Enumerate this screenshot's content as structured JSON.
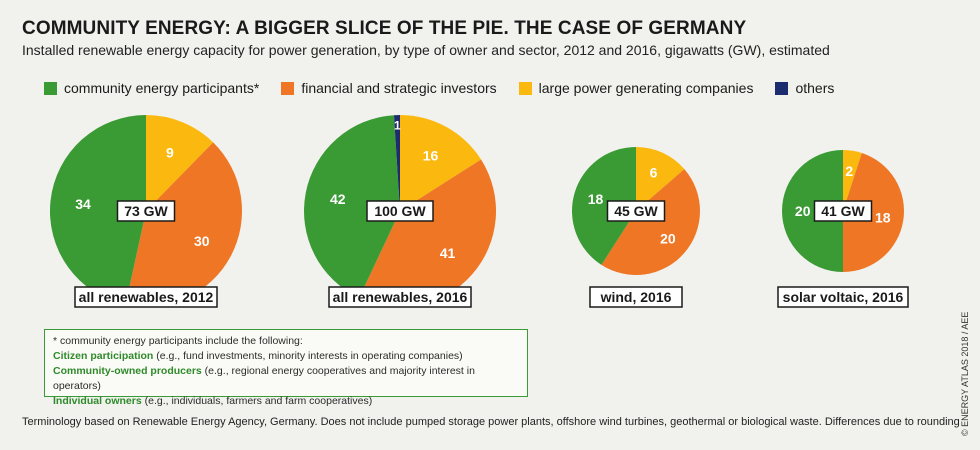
{
  "header": {
    "title": "COMMUNITY ENERGY: A BIGGER SLICE OF THE PIE. THE CASE OF GERMANY",
    "subtitle": "Installed renewable energy capacity for power generation, by type of owner and sector, 2012 and 2016, gigawatts (GW), estimated"
  },
  "legend": [
    {
      "label": "community energy participants*",
      "color": "#3a9a34"
    },
    {
      "label": "financial and strategic investors",
      "color": "#ee7624"
    },
    {
      "label": "large power generating companies",
      "color": "#fbb90f"
    },
    {
      "label": "others",
      "color": "#1d2c6e"
    }
  ],
  "chart_data": [
    {
      "type": "pie",
      "title": "all renewables, 2012",
      "total": "73 GW",
      "labels": [
        "community energy participants*",
        "financial and strategic investors",
        "large power generating companies"
      ],
      "values": [
        34,
        30,
        9
      ],
      "colors": [
        "#3a9a34",
        "#ee7624",
        "#fbb90f"
      ]
    },
    {
      "type": "pie",
      "title": "all renewables, 2016",
      "total": "100 GW",
      "labels": [
        "community energy participants*",
        "financial and strategic investors",
        "large power generating companies",
        "others"
      ],
      "values": [
        42,
        41,
        16,
        1
      ],
      "colors": [
        "#3a9a34",
        "#ee7624",
        "#fbb90f",
        "#1d2c6e"
      ]
    },
    {
      "type": "pie",
      "title": "wind, 2016",
      "total": "45 GW",
      "labels": [
        "community energy participants*",
        "financial and strategic investors",
        "large power generating companies"
      ],
      "values": [
        18,
        20,
        6
      ],
      "colors": [
        "#3a9a34",
        "#ee7624",
        "#fbb90f"
      ]
    },
    {
      "type": "pie",
      "title": "solar voltaic, 2016",
      "total": "41 GW",
      "labels": [
        "community energy participants*",
        "financial and strategic investors",
        "large power generating companies"
      ],
      "values": [
        20,
        18,
        2
      ],
      "colors": [
        "#3a9a34",
        "#ee7624",
        "#fbb90f"
      ]
    }
  ],
  "note": {
    "intro": "* community energy participants include the following:",
    "items": [
      {
        "term": "Citizen participation",
        "desc": " (e.g., fund investments, minority interests in operating companies)"
      },
      {
        "term": "Community-owned producers",
        "desc": " (e.g., regional energy cooperatives and majority interest in operators)"
      },
      {
        "term": "Individual owners",
        "desc": " (e.g., individuals, farmers and farm cooperatives)"
      }
    ]
  },
  "footer": "Terminology based on Renewable Energy Agency, Germany. Does not include pumped storage power plants, offshore wind turbines, geothermal or biological waste. Differences due to rounding",
  "credit": "© ENERGY ATLAS 2018 / AEE"
}
